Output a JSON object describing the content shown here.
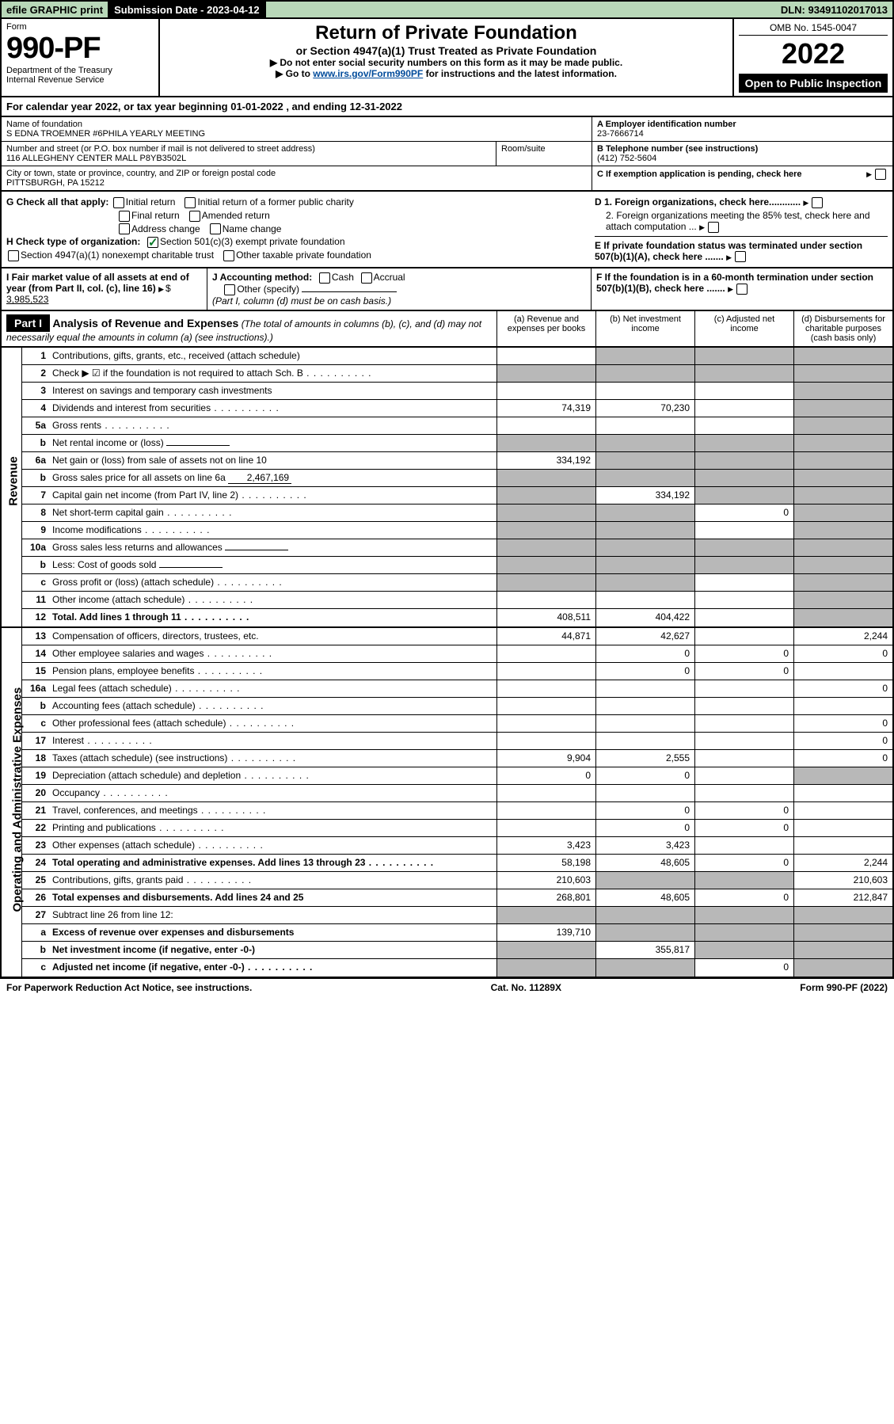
{
  "topbar": {
    "efile": "efile GRAPHIC print",
    "sub_label": "Submission Date - 2023-04-12",
    "dln": "DLN: 93491102017013"
  },
  "header": {
    "form": "Form",
    "form_no": "990-PF",
    "dept": "Department of the Treasury\nInternal Revenue Service",
    "title": "Return of Private Foundation",
    "subtitle": "or Section 4947(a)(1) Trust Treated as Private Foundation",
    "note1": "▶ Do not enter social security numbers on this form as it may be made public.",
    "note2_pre": "▶ Go to ",
    "note2_link": "www.irs.gov/Form990PF",
    "note2_post": " for instructions and the latest information.",
    "omb": "OMB No. 1545-0047",
    "year": "2022",
    "open": "Open to Public Inspection"
  },
  "calyear": "For calendar year 2022, or tax year beginning 01-01-2022                     , and ending 12-31-2022",
  "info": {
    "name_lbl": "Name of foundation",
    "name": "S EDNA TROEMNER #6PHILA YEARLY MEETING",
    "addr_lbl": "Number and street (or P.O. box number if mail is not delivered to street address)",
    "addr": "116 ALLEGHENY CENTER MALL P8YB3502L",
    "room_lbl": "Room/suite",
    "city_lbl": "City or town, state or province, country, and ZIP or foreign postal code",
    "city": "PITTSBURGH, PA  15212",
    "a_lbl": "A Employer identification number",
    "a_val": "23-7666714",
    "b_lbl": "B Telephone number (see instructions)",
    "b_val": "(412) 752-5604",
    "c_lbl": "C If exemption application is pending, check here"
  },
  "checks": {
    "g": "G Check all that apply:",
    "g_opts": [
      "Initial return",
      "Initial return of a former public charity",
      "Final return",
      "Amended return",
      "Address change",
      "Name change"
    ],
    "h": "H Check type of organization:",
    "h1": "Section 501(c)(3) exempt private foundation",
    "h2": "Section 4947(a)(1) nonexempt charitable trust",
    "h3": "Other taxable private foundation",
    "d1": "D 1. Foreign organizations, check here............",
    "d2": "2. Foreign organizations meeting the 85% test, check here and attach computation ...",
    "e": "E  If private foundation status was terminated under section 507(b)(1)(A), check here .......",
    "f": "F  If the foundation is in a 60-month termination under section 507(b)(1)(B), check here ......."
  },
  "fmv": {
    "i_lbl": "I Fair market value of all assets at end of year (from Part II, col. (c), line 16)",
    "i_val": "3,985,523",
    "j_lbl": "J Accounting method:",
    "j_opts": [
      "Cash",
      "Accrual"
    ],
    "j_other": "Other (specify)",
    "j_note": "(Part I, column (d) must be on cash basis.)"
  },
  "part1": {
    "label": "Part I",
    "title": "Analysis of Revenue and Expenses",
    "title_note": " (The total of amounts in columns (b), (c), and (d) may not necessarily equal the amounts in column (a) (see instructions).)",
    "cols": [
      "(a)  Revenue and expenses per books",
      "(b)  Net investment income",
      "(c)  Adjusted net income",
      "(d)  Disbursements for charitable purposes (cash basis only)"
    ]
  },
  "side": {
    "revenue": "Revenue",
    "expenses": "Operating and Administrative Expenses"
  },
  "rows_rev": [
    {
      "n": "1",
      "d": "Contributions, gifts, grants, etc., received (attach schedule)",
      "a": "",
      "b": "shaded",
      "c": "shaded",
      "e": "shaded"
    },
    {
      "n": "2",
      "d": "Check ▶ ☑ if the foundation is not required to attach Sch. B",
      "dots": true,
      "a": "shaded",
      "b": "shaded",
      "c": "shaded",
      "e": "shaded"
    },
    {
      "n": "3",
      "d": "Interest on savings and temporary cash investments",
      "a": "",
      "b": "",
      "c": "",
      "e": "shaded"
    },
    {
      "n": "4",
      "d": "Dividends and interest from securities",
      "dots": true,
      "a": "74,319",
      "b": "70,230",
      "c": "",
      "e": "shaded"
    },
    {
      "n": "5a",
      "d": "Gross rents",
      "dots": true,
      "a": "",
      "b": "",
      "c": "",
      "e": "shaded"
    },
    {
      "n": "b",
      "d": "Net rental income or (loss)",
      "a": "shaded",
      "b": "shaded",
      "c": "shaded",
      "e": "shaded",
      "inline": ""
    },
    {
      "n": "6a",
      "d": "Net gain or (loss) from sale of assets not on line 10",
      "a": "334,192",
      "b": "shaded",
      "c": "shaded",
      "e": "shaded"
    },
    {
      "n": "b",
      "d": "Gross sales price for all assets on line 6a",
      "a": "shaded",
      "b": "shaded",
      "c": "shaded",
      "e": "shaded",
      "inline": "2,467,169"
    },
    {
      "n": "7",
      "d": "Capital gain net income (from Part IV, line 2)",
      "dots": true,
      "a": "shaded",
      "b": "334,192",
      "c": "shaded",
      "e": "shaded"
    },
    {
      "n": "8",
      "d": "Net short-term capital gain",
      "dots": true,
      "a": "shaded",
      "b": "shaded",
      "c": "0",
      "e": "shaded"
    },
    {
      "n": "9",
      "d": "Income modifications",
      "dots": true,
      "a": "shaded",
      "b": "shaded",
      "c": "",
      "e": "shaded"
    },
    {
      "n": "10a",
      "d": "Gross sales less returns and allowances",
      "a": "shaded",
      "b": "shaded",
      "c": "shaded",
      "e": "shaded",
      "inline": ""
    },
    {
      "n": "b",
      "d": "Less: Cost of goods sold",
      "dots": true,
      "a": "shaded",
      "b": "shaded",
      "c": "shaded",
      "e": "shaded",
      "inline": ""
    },
    {
      "n": "c",
      "d": "Gross profit or (loss) (attach schedule)",
      "dots": true,
      "a": "shaded",
      "b": "shaded",
      "c": "",
      "e": "shaded"
    },
    {
      "n": "11",
      "d": "Other income (attach schedule)",
      "dots": true,
      "a": "",
      "b": "",
      "c": "",
      "e": "shaded"
    },
    {
      "n": "12",
      "d": "Total. Add lines 1 through 11",
      "dots": true,
      "bold": true,
      "a": "408,511",
      "b": "404,422",
      "c": "",
      "e": "shaded"
    }
  ],
  "rows_exp": [
    {
      "n": "13",
      "d": "Compensation of officers, directors, trustees, etc.",
      "a": "44,871",
      "b": "42,627",
      "c": "",
      "e": "2,244"
    },
    {
      "n": "14",
      "d": "Other employee salaries and wages",
      "dots": true,
      "a": "",
      "b": "0",
      "c": "0",
      "e": "0"
    },
    {
      "n": "15",
      "d": "Pension plans, employee benefits",
      "dots": true,
      "a": "",
      "b": "0",
      "c": "0",
      "e": ""
    },
    {
      "n": "16a",
      "d": "Legal fees (attach schedule)",
      "dots": true,
      "a": "",
      "b": "",
      "c": "",
      "e": "0"
    },
    {
      "n": "b",
      "d": "Accounting fees (attach schedule)",
      "dots": true,
      "a": "",
      "b": "",
      "c": "",
      "e": ""
    },
    {
      "n": "c",
      "d": "Other professional fees (attach schedule)",
      "dots": true,
      "a": "",
      "b": "",
      "c": "",
      "e": "0"
    },
    {
      "n": "17",
      "d": "Interest",
      "dots": true,
      "a": "",
      "b": "",
      "c": "",
      "e": "0"
    },
    {
      "n": "18",
      "d": "Taxes (attach schedule) (see instructions)",
      "dots": true,
      "a": "9,904",
      "b": "2,555",
      "c": "",
      "e": "0"
    },
    {
      "n": "19",
      "d": "Depreciation (attach schedule) and depletion",
      "dots": true,
      "a": "0",
      "b": "0",
      "c": "",
      "e": "shaded"
    },
    {
      "n": "20",
      "d": "Occupancy",
      "dots": true,
      "a": "",
      "b": "",
      "c": "",
      "e": ""
    },
    {
      "n": "21",
      "d": "Travel, conferences, and meetings",
      "dots": true,
      "a": "",
      "b": "0",
      "c": "0",
      "e": ""
    },
    {
      "n": "22",
      "d": "Printing and publications",
      "dots": true,
      "a": "",
      "b": "0",
      "c": "0",
      "e": ""
    },
    {
      "n": "23",
      "d": "Other expenses (attach schedule)",
      "dots": true,
      "a": "3,423",
      "b": "3,423",
      "c": "",
      "e": ""
    },
    {
      "n": "24",
      "d": "Total operating and administrative expenses. Add lines 13 through 23",
      "dots": true,
      "bold": true,
      "a": "58,198",
      "b": "48,605",
      "c": "0",
      "e": "2,244"
    },
    {
      "n": "25",
      "d": "Contributions, gifts, grants paid",
      "dots": true,
      "a": "210,603",
      "b": "shaded",
      "c": "shaded",
      "e": "210,603"
    },
    {
      "n": "26",
      "d": "Total expenses and disbursements. Add lines 24 and 25",
      "bold": true,
      "a": "268,801",
      "b": "48,605",
      "c": "0",
      "e": "212,847"
    },
    {
      "n": "27",
      "d": "Subtract line 26 from line 12:",
      "a": "shaded",
      "b": "shaded",
      "c": "shaded",
      "e": "shaded"
    },
    {
      "n": "a",
      "d": "Excess of revenue over expenses and disbursements",
      "bold": true,
      "a": "139,710",
      "b": "shaded",
      "c": "shaded",
      "e": "shaded"
    },
    {
      "n": "b",
      "d": "Net investment income (if negative, enter -0-)",
      "bold": true,
      "a": "shaded",
      "b": "355,817",
      "c": "shaded",
      "e": "shaded"
    },
    {
      "n": "c",
      "d": "Adjusted net income (if negative, enter -0-)",
      "dots": true,
      "bold": true,
      "a": "shaded",
      "b": "shaded",
      "c": "0",
      "e": "shaded"
    }
  ],
  "footer": {
    "left": "For Paperwork Reduction Act Notice, see instructions.",
    "mid": "Cat. No. 11289X",
    "right": "Form 990-PF (2022)"
  }
}
